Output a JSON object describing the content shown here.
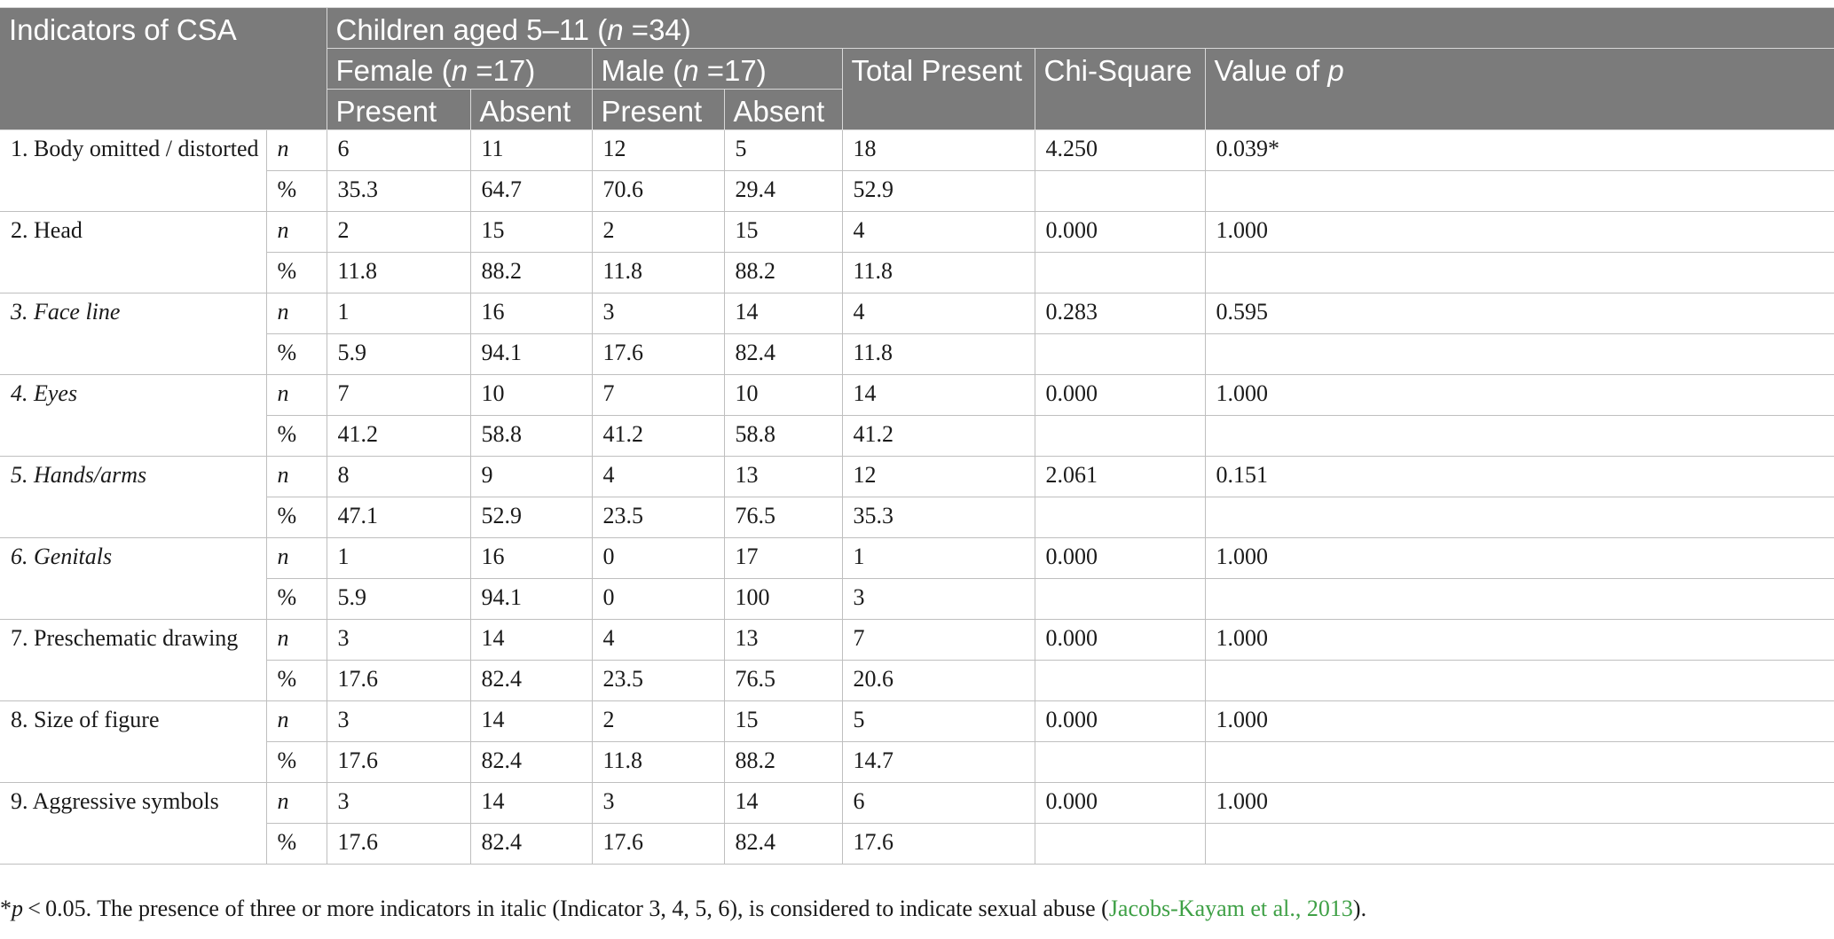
{
  "header": {
    "indicators": "Indicators of CSA",
    "group": {
      "label": "Children aged 5–11 (",
      "n": "n",
      "eq": " =34)"
    },
    "female": {
      "label": "Female (",
      "n": "n",
      "eq": " =17)"
    },
    "male": {
      "label": "Male (",
      "n": "n",
      "eq": " =17)"
    },
    "total": "Total Present",
    "chi": "Chi-Square",
    "pval": {
      "label": "Value of ",
      "p": "p"
    },
    "present": "Present",
    "absent": "Absent"
  },
  "rows": [
    {
      "label": "1. Body omitted / distorted",
      "italic": false,
      "n": {
        "key": "n",
        "f_present": "6",
        "f_absent": "11",
        "m_present": "12",
        "m_absent": "5",
        "total": "18",
        "chi": "4.250",
        "p": "0.039*"
      },
      "pct": {
        "key": "%",
        "f_present": "35.3",
        "f_absent": "64.7",
        "m_present": "70.6",
        "m_absent": "29.4",
        "total": "52.9"
      }
    },
    {
      "label": "2. Head",
      "italic": false,
      "n": {
        "key": "n",
        "f_present": "2",
        "f_absent": "15",
        "m_present": "2",
        "m_absent": "15",
        "total": "4",
        "chi": "0.000",
        "p": "1.000"
      },
      "pct": {
        "key": "%",
        "f_present": "11.8",
        "f_absent": "88.2",
        "m_present": "11.8",
        "m_absent": "88.2",
        "total": "11.8"
      }
    },
    {
      "label": "3. Face line",
      "italic": true,
      "n": {
        "key": "n",
        "f_present": "1",
        "f_absent": "16",
        "m_present": "3",
        "m_absent": "14",
        "total": "4",
        "chi": "0.283",
        "p": "0.595"
      },
      "pct": {
        "key": "%",
        "f_present": "5.9",
        "f_absent": "94.1",
        "m_present": "17.6",
        "m_absent": "82.4",
        "total": "11.8"
      }
    },
    {
      "label": "4. Eyes",
      "italic": true,
      "n": {
        "key": "n",
        "f_present": "7",
        "f_absent": "10",
        "m_present": "7",
        "m_absent": "10",
        "total": "14",
        "chi": "0.000",
        "p": "1.000"
      },
      "pct": {
        "key": "%",
        "f_present": "41.2",
        "f_absent": "58.8",
        "m_present": "41.2",
        "m_absent": "58.8",
        "total": "41.2"
      }
    },
    {
      "label": "5. Hands/arms",
      "italic": true,
      "n": {
        "key": "n",
        "f_present": "8",
        "f_absent": "9",
        "m_present": "4",
        "m_absent": "13",
        "total": "12",
        "chi": "2.061",
        "p": "0.151"
      },
      "pct": {
        "key": "%",
        "f_present": "47.1",
        "f_absent": "52.9",
        "m_present": "23.5",
        "m_absent": "76.5",
        "total": "35.3"
      }
    },
    {
      "label": "6. Genitals",
      "italic": true,
      "n": {
        "key": "n",
        "f_present": "1",
        "f_absent": "16",
        "m_present": "0",
        "m_absent": "17",
        "total": "1",
        "chi": "0.000",
        "p": "1.000"
      },
      "pct": {
        "key": "%",
        "f_present": "5.9",
        "f_absent": "94.1",
        "m_present": "0",
        "m_absent": "100",
        "total": "3"
      }
    },
    {
      "label": "7. Preschematic drawing",
      "italic": false,
      "n": {
        "key": "n",
        "f_present": "3",
        "f_absent": "14",
        "m_present": "4",
        "m_absent": "13",
        "total": "7",
        "chi": "0.000",
        "p": "1.000"
      },
      "pct": {
        "key": "%",
        "f_present": "17.6",
        "f_absent": "82.4",
        "m_present": "23.5",
        "m_absent": "76.5",
        "total": "20.6"
      }
    },
    {
      "label": "8. Size of figure",
      "italic": false,
      "n": {
        "key": "n",
        "f_present": "3",
        "f_absent": "14",
        "m_present": "2",
        "m_absent": "15",
        "total": "5",
        "chi": "0.000",
        "p": "1.000"
      },
      "pct": {
        "key": "%",
        "f_present": "17.6",
        "f_absent": "82.4",
        "m_present": "11.8",
        "m_absent": "88.2",
        "total": "14.7"
      }
    },
    {
      "label": "9. Aggressive symbols",
      "italic": false,
      "n": {
        "key": "n",
        "f_present": "3",
        "f_absent": "14",
        "m_present": "3",
        "m_absent": "14",
        "total": "6",
        "chi": "0.000",
        "p": "1.000"
      },
      "pct": {
        "key": "%",
        "f_present": "17.6",
        "f_absent": "82.4",
        "m_present": "17.6",
        "m_absent": "82.4",
        "total": "17.6"
      }
    }
  ],
  "footnote": {
    "star": "*",
    "p": "p",
    "text": " < 0.05. The presence of three or more indicators in italic (Indicator 3, 4, 5, 6), is considered to indicate sexual abuse (",
    "link": "Jacobs-Kayam et al., 2013",
    "close": ")."
  }
}
